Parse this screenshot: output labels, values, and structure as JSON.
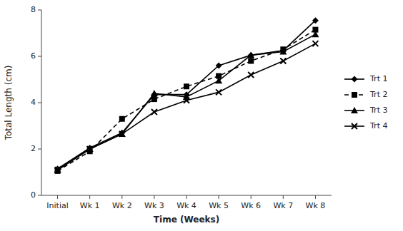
{
  "chart_data": {
    "type": "line",
    "x_label": "Time (Weeks)",
    "y_label": "Total Length (cm)",
    "categories": [
      "Initial",
      "Wk 1",
      "Wk 2",
      "Wk 3",
      "Wk 4",
      "Wk 5",
      "Wk 6",
      "Wk 7",
      "Wk 8"
    ],
    "series": [
      {
        "name": "Trt 1",
        "color": "#000000",
        "marker": "diamond",
        "line_style": "solid",
        "values": [
          1.15,
          2.05,
          2.7,
          4.35,
          4.35,
          5.6,
          6.05,
          6.25,
          7.55
        ]
      },
      {
        "name": "Trt 2",
        "color": "#000000",
        "marker": "square",
        "line_style": "dashed",
        "values": [
          1.05,
          1.9,
          3.3,
          4.15,
          4.7,
          5.15,
          5.8,
          6.3,
          7.15
        ]
      },
      {
        "name": "Trt 3",
        "color": "#000000",
        "marker": "triangle",
        "line_style": "solid",
        "values": [
          1.1,
          2.0,
          2.65,
          4.4,
          4.25,
          4.95,
          6.05,
          6.2,
          6.95
        ]
      },
      {
        "name": "Trt 4",
        "color": "#000000",
        "marker": "x",
        "line_style": "solid",
        "values": [
          1.1,
          2.0,
          2.65,
          3.6,
          4.1,
          4.45,
          5.2,
          5.8,
          6.55
        ]
      }
    ],
    "ylim": [
      0,
      8
    ],
    "yticks": [
      0,
      2,
      4,
      6,
      8
    ],
    "grid": false,
    "legend": "right"
  }
}
